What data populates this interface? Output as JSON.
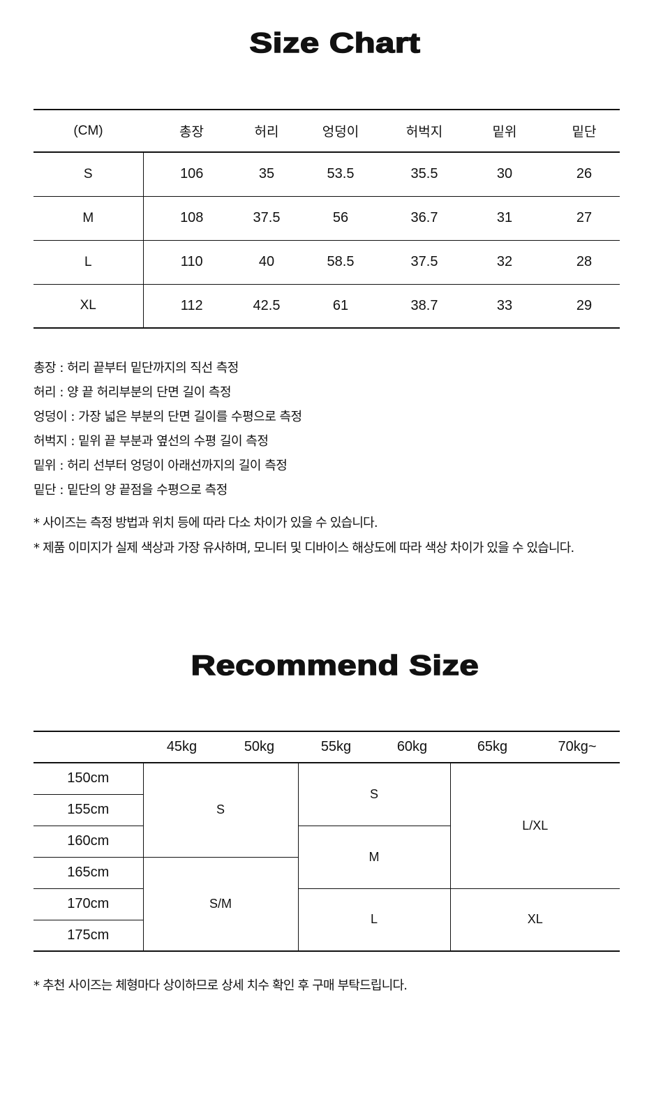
{
  "size_chart": {
    "title": "Size Chart",
    "unit": "(CM)",
    "columns": [
      "총장",
      "허리",
      "엉덩이",
      "허벅지",
      "밑위",
      "밑단"
    ],
    "rows": [
      {
        "size": "S",
        "values": [
          "106",
          "35",
          "53.5",
          "35.5",
          "30",
          "26"
        ]
      },
      {
        "size": "M",
        "values": [
          "108",
          "37.5",
          "56",
          "36.7",
          "31",
          "27"
        ]
      },
      {
        "size": "L",
        "values": [
          "110",
          "40",
          "58.5",
          "37.5",
          "32",
          "28"
        ]
      },
      {
        "size": "XL",
        "values": [
          "112",
          "42.5",
          "61",
          "38.7",
          "33",
          "29"
        ]
      }
    ]
  },
  "definitions": [
    "총장 : 허리 끝부터 밑단까지의 직선 측정",
    "허리 : 양 끝 허리부분의 단면 길이 측정",
    "엉덩이 : 가장 넓은 부분의 단면 길이를 수평으로 측정",
    "허벅지 : 밑위 끝 부분과 옆선의 수평 길이 측정",
    "밑위 : 허리 선부터 엉덩이 아래선까지의 길이 측정",
    "밑단 : 밑단의 양 끝점을 수평으로 측정"
  ],
  "notices": [
    "* 사이즈는 측정 방법과 위치 등에 따라 다소 차이가 있을 수 있습니다.",
    "* 제품 이미지가 실제 색상과 가장 유사하며, 모니터 및 디바이스 해상도에 따라 색상 차이가 있을 수 있습니다."
  ],
  "recommend": {
    "title": "Recommend Size",
    "weights": [
      "45kg",
      "50kg",
      "55kg",
      "60kg",
      "65kg",
      "70kg~"
    ],
    "heights": [
      "150cm",
      "155cm",
      "160cm",
      "165cm",
      "170cm",
      "175cm"
    ],
    "cells": {
      "a1": "S",
      "a2": "S/M",
      "b1": "S",
      "b2": "M",
      "b3": "L",
      "c1": "L/XL",
      "c2": "XL"
    },
    "footnote": "* 추천 사이즈는 체형마다 상이하므로 상세 치수 확인 후 구매 부탁드립니다."
  }
}
